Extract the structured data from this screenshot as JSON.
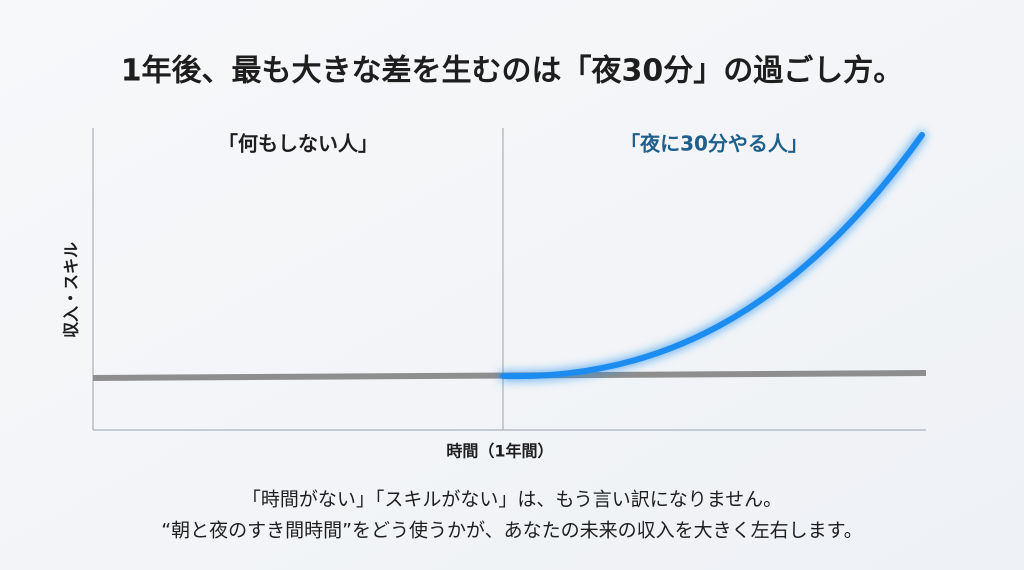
{
  "title": "1年後、最も大きな差を生むのは「夜30分」の過ごし方。",
  "chart": {
    "left_label": "「何もしない人」",
    "right_label": "「夜に30分やる人」",
    "y_axis_label": "収入・スキル",
    "x_axis_label": "時間（1年間）"
  },
  "footer": {
    "lines": [
      "「時間がない」「スキルがない」は、もう言い訳になりません。",
      "“朝と夜のすき間時間”をどう使うかが、あなたの未来の収入を大きく左右します。"
    ]
  }
}
